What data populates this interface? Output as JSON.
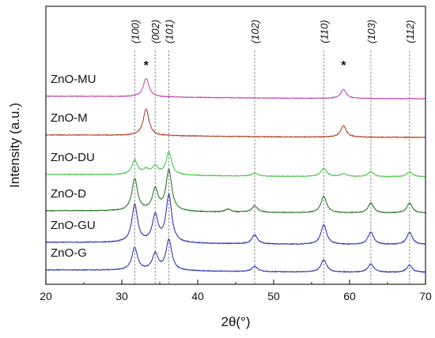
{
  "chart_data": {
    "type": "line",
    "xlabel": "2θ(°)",
    "ylabel": "Intensity (a.u.)",
    "xlim": [
      20,
      70
    ],
    "x_ticks": [
      "20",
      "30",
      "40",
      "50",
      "60",
      "70"
    ],
    "y_ticks": "none",
    "grid": false,
    "legend": "none (series labeled inline at left)",
    "reference_lines": [
      {
        "x": 31.7,
        "label": "(100)"
      },
      {
        "x": 34.4,
        "label": "(002)"
      },
      {
        "x": 36.2,
        "label": "(101)"
      },
      {
        "x": 47.5,
        "label": "(102)"
      },
      {
        "x": 56.6,
        "label": "(110)"
      },
      {
        "x": 62.8,
        "label": "(103)"
      },
      {
        "x": 67.9,
        "label": "(112)"
      }
    ],
    "impurity_markers": [
      {
        "x": 33.2,
        "label": "*"
      },
      {
        "x": 59.2,
        "label": "*"
      }
    ],
    "series": [
      {
        "name": "ZnO-G",
        "color": "#3b3bb0",
        "peaks": [
          [
            31.7,
            0.55
          ],
          [
            34.4,
            0.4
          ],
          [
            36.2,
            0.75
          ],
          [
            47.5,
            0.13
          ],
          [
            56.6,
            0.3
          ],
          [
            62.8,
            0.2
          ],
          [
            67.9,
            0.17
          ]
        ]
      },
      {
        "name": "ZnO-GU",
        "color": "#3535b8",
        "peaks": [
          [
            31.7,
            0.92
          ],
          [
            34.4,
            0.65
          ],
          [
            36.2,
            1.15
          ],
          [
            47.5,
            0.22
          ],
          [
            56.6,
            0.48
          ],
          [
            62.8,
            0.3
          ],
          [
            67.9,
            0.3
          ]
        ]
      },
      {
        "name": "ZnO-D",
        "color": "#2e7a2e",
        "peaks": [
          [
            31.7,
            0.78
          ],
          [
            34.4,
            0.52
          ],
          [
            36.2,
            1.0
          ],
          [
            44.0,
            0.07
          ],
          [
            47.5,
            0.16
          ],
          [
            56.6,
            0.4
          ],
          [
            62.8,
            0.24
          ],
          [
            67.9,
            0.24
          ]
        ]
      },
      {
        "name": "ZnO-DU",
        "color": "#4fc84f",
        "peaks": [
          [
            31.7,
            0.35
          ],
          [
            33.2,
            0.12
          ],
          [
            34.4,
            0.2
          ],
          [
            36.2,
            0.55
          ],
          [
            47.5,
            0.07
          ],
          [
            56.6,
            0.2
          ],
          [
            59.2,
            0.07
          ],
          [
            62.8,
            0.12
          ],
          [
            67.9,
            0.12
          ]
        ]
      },
      {
        "name": "ZnO-M",
        "color": "#b5442a",
        "peaks": [
          [
            33.2,
            0.65
          ],
          [
            59.2,
            0.28
          ]
        ]
      },
      {
        "name": "ZnO-MU",
        "color": "#c050b8",
        "peaks": [
          [
            33.2,
            0.45
          ],
          [
            59.2,
            0.22
          ]
        ]
      }
    ]
  }
}
